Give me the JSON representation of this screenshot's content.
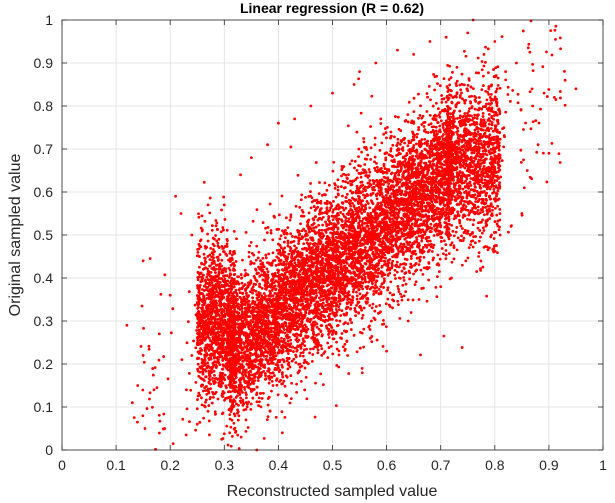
{
  "chart_data": {
    "type": "scatter",
    "title": "Linear regression (R = 0.62)",
    "xlabel": "Reconstructed sampled value",
    "ylabel": "Original sampled value",
    "xlim": [
      0,
      1
    ],
    "ylim": [
      0,
      1
    ],
    "xticks": [
      "0",
      "0.1",
      "0.2",
      "0.3",
      "0.4",
      "0.5",
      "0.6",
      "0.7",
      "0.8",
      "0.9",
      "1"
    ],
    "yticks": [
      "0",
      "0.1",
      "0.2",
      "0.3",
      "0.4",
      "0.5",
      "0.6",
      "0.7",
      "0.8",
      "0.9",
      "1"
    ],
    "grid": true,
    "marker_color": "#ff0000",
    "series": [
      {
        "points": [
          [
            0.12,
            0.29
          ],
          [
            0.13,
            0.11
          ],
          [
            0.14,
            0.15
          ],
          [
            0.15,
            0.44
          ],
          [
            0.15,
            0.22
          ],
          [
            0.17,
            0.14
          ],
          [
            0.18,
            0.27
          ],
          [
            0.19,
            0.05
          ],
          [
            0.2,
            0.36
          ],
          [
            0.21,
            0.59
          ],
          [
            0.22,
            0.55
          ],
          [
            0.23,
            0.14
          ],
          [
            0.24,
            0.5
          ],
          [
            0.25,
            0.06
          ],
          [
            0.26,
            0.33
          ],
          [
            0.27,
            0.57
          ],
          [
            0.27,
            0.09
          ],
          [
            0.28,
            0.13
          ],
          [
            0.29,
            0.49
          ],
          [
            0.3,
            0.57
          ],
          [
            0.31,
            0.04
          ],
          [
            0.32,
            0.14
          ],
          [
            0.33,
            0.64
          ],
          [
            0.34,
            0.07
          ],
          [
            0.35,
            0.68
          ],
          [
            0.36,
            0.0
          ],
          [
            0.37,
            0.12
          ],
          [
            0.38,
            0.71
          ],
          [
            0.39,
            0.15
          ],
          [
            0.4,
            0.76
          ],
          [
            0.41,
            0.16
          ],
          [
            0.43,
            0.77
          ],
          [
            0.44,
            0.2
          ],
          [
            0.46,
            0.8
          ],
          [
            0.48,
            0.22
          ],
          [
            0.5,
            0.83
          ],
          [
            0.52,
            0.24
          ],
          [
            0.54,
            0.85
          ],
          [
            0.55,
            0.88
          ],
          [
            0.57,
            0.26
          ],
          [
            0.58,
            0.9
          ],
          [
            0.6,
            0.23
          ],
          [
            0.62,
            0.93
          ],
          [
            0.64,
            0.3
          ],
          [
            0.65,
            0.92
          ],
          [
            0.66,
            0.35
          ],
          [
            0.68,
            0.95
          ],
          [
            0.7,
            0.38
          ],
          [
            0.71,
            0.96
          ],
          [
            0.72,
            0.4
          ],
          [
            0.73,
            0.89
          ],
          [
            0.74,
            0.43
          ],
          [
            0.75,
            0.97
          ],
          [
            0.76,
            1.0
          ],
          [
            0.77,
            0.45
          ],
          [
            0.78,
            0.92
          ],
          [
            0.79,
            0.47
          ],
          [
            0.8,
            0.95
          ],
          [
            0.81,
            0.5
          ],
          [
            0.82,
            0.88
          ],
          [
            0.83,
            0.52
          ],
          [
            0.84,
            0.9
          ],
          [
            0.85,
            0.55
          ],
          [
            0.86,
            0.65
          ],
          [
            0.87,
            0.8
          ],
          [
            0.88,
            0.71
          ],
          [
            0.9,
            0.69
          ],
          [
            0.91,
            0.82
          ],
          [
            0.93,
            0.86
          ],
          [
            0.95,
            0.84
          ]
        ]
      }
    ]
  }
}
